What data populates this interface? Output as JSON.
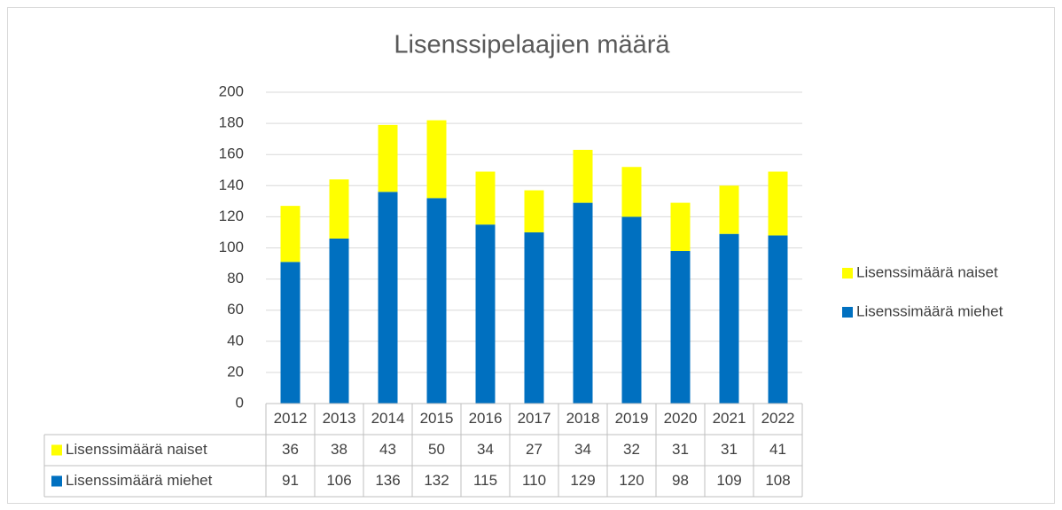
{
  "chart_data": {
    "type": "bar",
    "stacked": true,
    "title": "Lisenssipelaajien määrä",
    "categories": [
      "2012",
      "2013",
      "2014",
      "2015",
      "2016",
      "2017",
      "2018",
      "2019",
      "2020",
      "2021",
      "2022"
    ],
    "series": [
      {
        "name": "Lisenssimäärä naiset",
        "color": "#ffff00",
        "values": [
          36,
          38,
          43,
          50,
          34,
          27,
          34,
          32,
          31,
          31,
          41
        ]
      },
      {
        "name": "Lisenssimäärä miehet",
        "color": "#0070c0",
        "values": [
          91,
          106,
          136,
          132,
          115,
          110,
          129,
          120,
          98,
          109,
          108
        ]
      }
    ],
    "ylim": [
      0,
      200
    ],
    "yticks": [
      0,
      20,
      40,
      60,
      80,
      100,
      120,
      140,
      160,
      180,
      200
    ],
    "grid": true,
    "legend": "right",
    "data_table": true
  }
}
